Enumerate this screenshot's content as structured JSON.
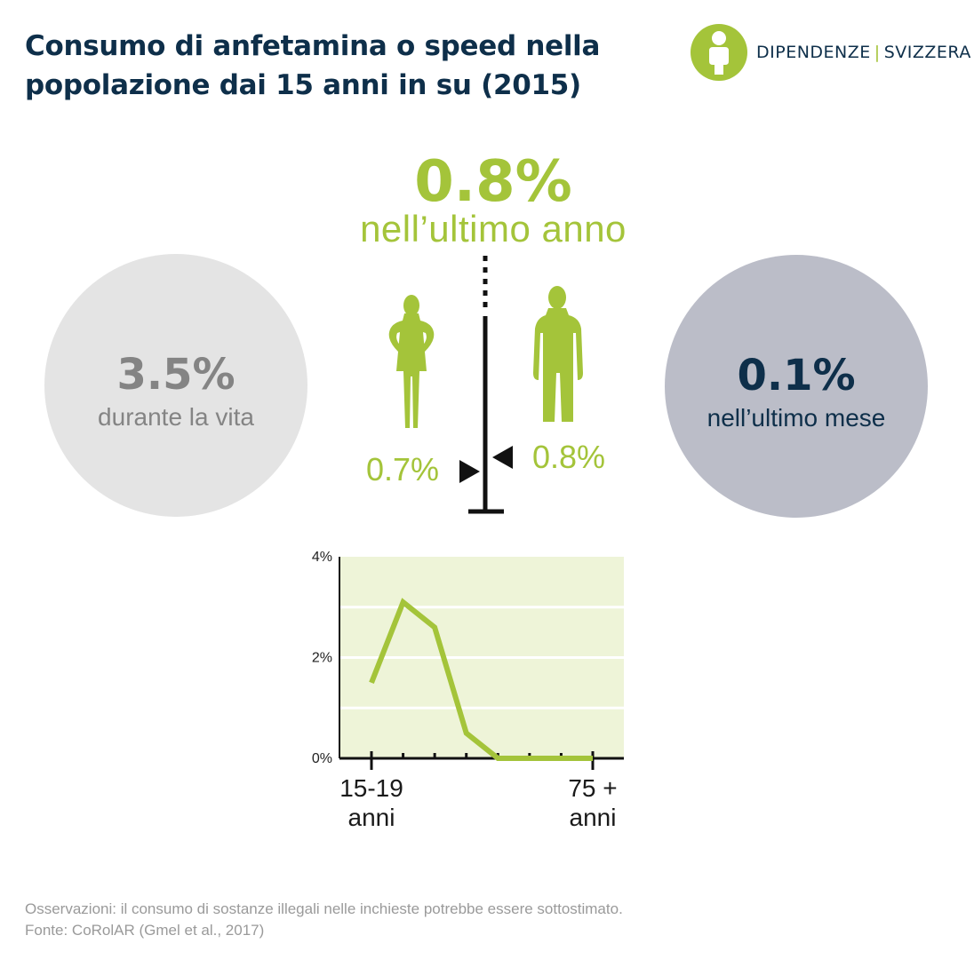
{
  "header": {
    "title_line1": "Consumo di anfetamina o speed nella",
    "title_line2": "popolazione dai 15 anni in su (2015)"
  },
  "logo": {
    "icon": "info-person-icon",
    "name_left": "DIPENDENZE",
    "separator": "|",
    "name_right": "SVIZZERA"
  },
  "stats": {
    "last_year": {
      "value": "0.8%",
      "label": "nell’ultimo anno"
    },
    "lifetime": {
      "value": "3.5%",
      "label": "durante la vita"
    },
    "last_month": {
      "value": "0.1%",
      "label": "nell’ultimo mese"
    },
    "female": {
      "value": "0.7%",
      "icon": "woman-silhouette-icon"
    },
    "male": {
      "value": "0.8%",
      "icon": "man-silhouette-icon"
    }
  },
  "colors": {
    "accent_green": "#a4c43a",
    "title_navy": "#0e2f4a",
    "lifetime_circle": "#e4e4e4",
    "month_circle": "#bbbdc8",
    "chart_bg": "#eef4d8"
  },
  "chart_data": {
    "type": "line",
    "x": [
      1,
      2,
      3,
      4,
      5,
      6,
      7,
      8
    ],
    "x_tick_labels": [
      {
        "x": 1,
        "line1": "15-19",
        "line2": "anni"
      },
      {
        "x": 8,
        "line1": "75 +",
        "line2": "anni"
      }
    ],
    "series": [
      {
        "values": [
          1.5,
          3.1,
          2.6,
          0.5,
          0.0,
          0.0,
          0.0,
          0.0
        ]
      }
    ],
    "ylim": [
      0,
      4
    ],
    "y_tick_labels": [
      "0%",
      "2%",
      "4%"
    ],
    "y_tick_values": [
      0,
      2,
      4
    ],
    "gridlines": [
      1,
      2,
      3
    ],
    "grid": true
  },
  "footer": {
    "note": "Osservazioni: il consumo di sostanze illegali nelle inchieste potrebbe essere sottostimato.",
    "source": "Fonte: CoRolAR (Gmel et al., 2017)"
  }
}
